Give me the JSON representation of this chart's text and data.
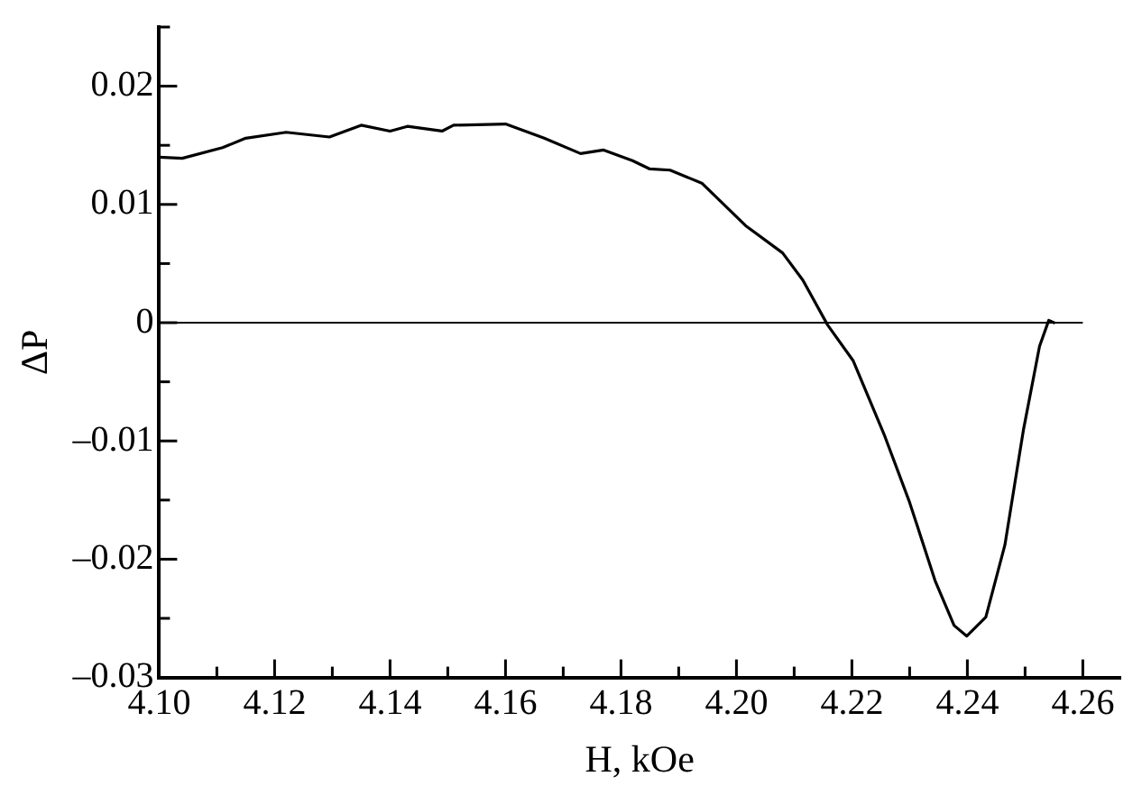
{
  "chart_data": {
    "type": "line",
    "xlabel": "H, kOe",
    "ylabel": "ΔP",
    "grid": false,
    "legend": false,
    "marker": "none",
    "line_style": "solid",
    "xlim": [
      4.1,
      4.2665
    ],
    "ylim": [
      -0.03,
      0.025
    ],
    "xticks": [
      {
        "value": 4.1,
        "label": "4.10"
      },
      {
        "value": 4.11,
        "label": null
      },
      {
        "value": 4.12,
        "label": "4.12"
      },
      {
        "value": 4.13,
        "label": null
      },
      {
        "value": 4.14,
        "label": "4.14"
      },
      {
        "value": 4.15,
        "label": null
      },
      {
        "value": 4.16,
        "label": "4.16"
      },
      {
        "value": 4.17,
        "label": null
      },
      {
        "value": 4.18,
        "label": "4.18"
      },
      {
        "value": 4.19,
        "label": null
      },
      {
        "value": 4.2,
        "label": "4.20"
      },
      {
        "value": 4.21,
        "label": null
      },
      {
        "value": 4.22,
        "label": "4.22"
      },
      {
        "value": 4.23,
        "label": null
      },
      {
        "value": 4.24,
        "label": "4.24"
      },
      {
        "value": 4.25,
        "label": null
      },
      {
        "value": 4.26,
        "label": "4.26"
      }
    ],
    "yticks": [
      {
        "value": -0.03,
        "label": "–0.03"
      },
      {
        "value": -0.025,
        "label": null
      },
      {
        "value": -0.02,
        "label": "–0.02"
      },
      {
        "value": -0.015,
        "label": null
      },
      {
        "value": -0.01,
        "label": "–0.01"
      },
      {
        "value": -0.005,
        "label": null
      },
      0,
      {
        "value": 0.005,
        "label": null
      },
      0.01,
      {
        "value": 0.015,
        "label": null
      },
      0.02,
      {
        "value": 0.025,
        "label": null
      }
    ],
    "ref_lines": [
      {
        "axis": "y",
        "value": 0,
        "color": "#000000"
      }
    ],
    "series": [
      {
        "color": "#000000",
        "x": [
          4.1,
          4.104,
          4.111,
          4.115,
          4.122,
          4.1295,
          4.135,
          4.14,
          4.143,
          4.149,
          4.151,
          4.16,
          4.1667,
          4.173,
          4.177,
          4.182,
          4.185,
          4.1885,
          4.194,
          4.2016,
          4.208,
          4.2115,
          4.2158,
          4.2202,
          4.2257,
          4.23,
          4.2344,
          4.2377,
          4.2399,
          4.2432,
          4.2465,
          4.2497,
          4.2525,
          4.2541,
          4.255
        ],
        "values": [
          0.014,
          0.0139,
          0.0148,
          0.0156,
          0.0161,
          0.0157,
          0.0167,
          0.0162,
          0.0166,
          0.0162,
          0.0167,
          0.0168,
          0.0156,
          0.0143,
          0.0146,
          0.0137,
          0.013,
          0.0129,
          0.0118,
          0.0082,
          0.0059,
          0.0036,
          -0.0002,
          -0.0032,
          -0.0096,
          -0.0152,
          -0.0218,
          -0.0256,
          -0.0265,
          -0.0249,
          -0.0188,
          -0.0091,
          -0.002,
          0.0002,
          0
        ]
      }
    ]
  }
}
